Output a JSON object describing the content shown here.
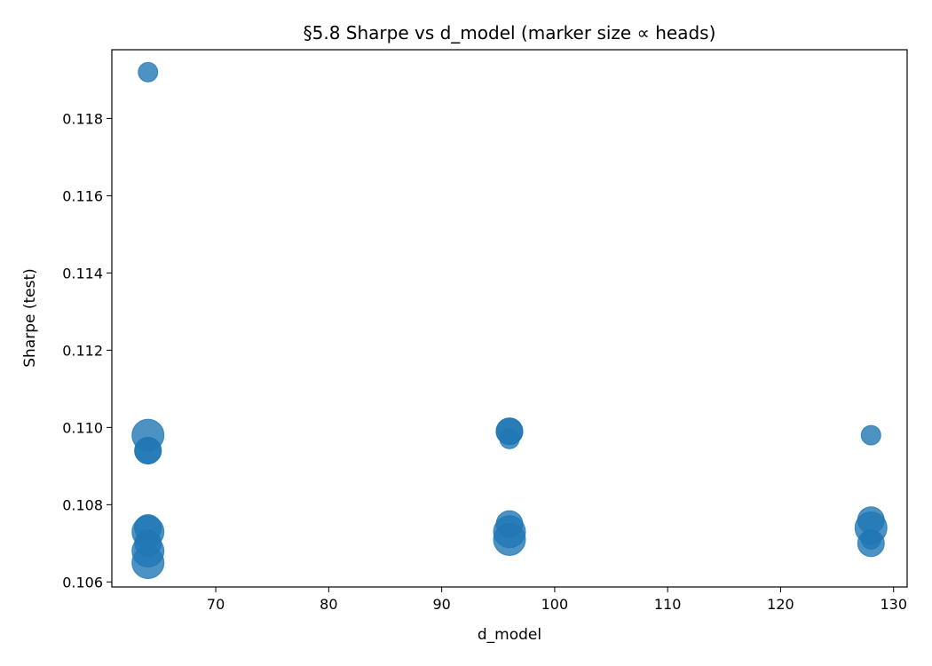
{
  "chart_data": {
    "type": "scatter",
    "title": "§5.8 Sharpe vs d_model (marker size ∝ heads)",
    "xlabel": "d_model",
    "ylabel": "Sharpe (test)",
    "xlim": [
      60.8,
      131.2
    ],
    "ylim": [
      0.10587,
      0.11978
    ],
    "xticks": [
      70,
      80,
      90,
      100,
      110,
      120,
      130
    ],
    "yticks": [
      0.106,
      0.108,
      0.11,
      0.112,
      0.114,
      0.116,
      0.118
    ],
    "xtick_labels": [
      "70",
      "80",
      "90",
      "100",
      "110",
      "120",
      "130"
    ],
    "ytick_labels": [
      "0.106",
      "0.108",
      "0.110",
      "0.112",
      "0.114",
      "0.116",
      "0.118"
    ],
    "grid": false,
    "color": "#1f77b4",
    "marker_alpha": 0.8,
    "size_encodes": "heads",
    "points": [
      {
        "x": 64,
        "y": 0.1192,
        "heads": 2
      },
      {
        "x": 64,
        "y": 0.1098,
        "heads": 8
      },
      {
        "x": 64,
        "y": 0.1094,
        "heads": 4
      },
      {
        "x": 64,
        "y": 0.1094,
        "heads": 4
      },
      {
        "x": 64,
        "y": 0.1074,
        "heads": 4
      },
      {
        "x": 64,
        "y": 0.1073,
        "heads": 8
      },
      {
        "x": 64,
        "y": 0.107,
        "heads": 4
      },
      {
        "x": 64,
        "y": 0.1068,
        "heads": 8
      },
      {
        "x": 64,
        "y": 0.1065,
        "heads": 8
      },
      {
        "x": 96,
        "y": 0.1099,
        "heads": 4
      },
      {
        "x": 96,
        "y": 0.1099,
        "heads": 4
      },
      {
        "x": 96,
        "y": 0.1097,
        "heads": 2
      },
      {
        "x": 96,
        "y": 0.1075,
        "heads": 4
      },
      {
        "x": 96,
        "y": 0.1073,
        "heads": 8
      },
      {
        "x": 96,
        "y": 0.1071,
        "heads": 8
      },
      {
        "x": 128,
        "y": 0.1098,
        "heads": 2
      },
      {
        "x": 128,
        "y": 0.1076,
        "heads": 4
      },
      {
        "x": 128,
        "y": 0.1074,
        "heads": 8
      },
      {
        "x": 128,
        "y": 0.1071,
        "heads": 2
      },
      {
        "x": 128,
        "y": 0.107,
        "heads": 4
      }
    ]
  }
}
